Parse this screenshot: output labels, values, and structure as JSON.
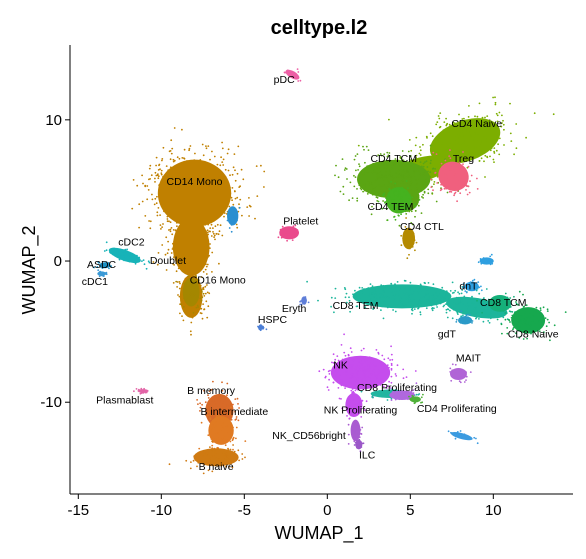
{
  "chart_data": {
    "type": "scatter",
    "title": "celltype.l2",
    "xlabel": "WUMAP_1",
    "ylabel": "WUMAP_2",
    "xlim": [
      -15.5,
      14.8
    ],
    "ylim": [
      -16.5,
      15.3
    ],
    "x_ticks": [
      -15,
      -10,
      -5,
      0,
      5,
      10
    ],
    "y_ticks": [
      -10,
      0,
      10
    ],
    "grid": false,
    "legend": "none",
    "clusters": [
      {
        "name": "CD4 Naive",
        "color": "#7cae00",
        "label_x": 9.0,
        "label_y": 9.5,
        "shapes": [
          {
            "cx": 8.3,
            "cy": 8.5,
            "rx": 2.6,
            "ry": 1.7,
            "rot": 20
          },
          {
            "cx": 5.7,
            "cy": 6.5,
            "rx": 2.0,
            "ry": 1.0,
            "rot": 15
          }
        ]
      },
      {
        "name": "CD4 TCM",
        "color": "#5aa513",
        "label_x": 4.0,
        "label_y": 7.0,
        "shapes": [
          {
            "cx": 4.0,
            "cy": 5.8,
            "rx": 2.6,
            "ry": 1.6,
            "rot": 0
          },
          {
            "cx": 4.7,
            "cy": 4.5,
            "rx": 1.0,
            "ry": 1.2,
            "rot": 0
          }
        ]
      },
      {
        "name": "Treg",
        "color": "#f0607e",
        "label_x": 8.2,
        "label_y": 7.0,
        "shapes": [
          {
            "cx": 7.6,
            "cy": 6.0,
            "rx": 1.1,
            "ry": 1.2,
            "rot": -30
          }
        ]
      },
      {
        "name": "CD4 TEM",
        "color": "#45b21f",
        "label_x": 3.8,
        "label_y": 3.6,
        "shapes": [
          {
            "cx": 4.3,
            "cy": 4.3,
            "rx": 0.9,
            "ry": 1.1,
            "rot": 0
          }
        ]
      },
      {
        "name": "CD4 CTL",
        "color": "#b48a00",
        "label_x": 5.7,
        "label_y": 2.2,
        "shapes": [
          {
            "cx": 4.9,
            "cy": 1.6,
            "rx": 0.45,
            "ry": 0.9,
            "rot": 0
          }
        ]
      },
      {
        "name": "pDC",
        "color": "#ec5fa5",
        "label_x": -2.6,
        "label_y": 12.6,
        "shapes": [
          {
            "cx": -2.1,
            "cy": 13.2,
            "rx": 0.55,
            "ry": 0.3,
            "rot": -30
          }
        ]
      },
      {
        "name": "CD14 Mono",
        "color": "#c08000",
        "label_x": -8.0,
        "label_y": 5.4,
        "shapes": [
          {
            "cx": -8.0,
            "cy": 4.8,
            "rx": 2.6,
            "ry": 2.8,
            "rot": 0
          },
          {
            "cx": -8.2,
            "cy": 1.0,
            "rx": 1.3,
            "ry": 2.4,
            "rot": 0
          },
          {
            "cx": -8.2,
            "cy": -2.5,
            "rx": 0.8,
            "ry": 1.8,
            "rot": 0
          }
        ]
      },
      {
        "name": "CD16 Mono",
        "color": "#a48700",
        "label_x": -6.6,
        "label_y": -1.6,
        "shapes": [
          {
            "cx": -8.2,
            "cy": -2.2,
            "rx": 0.6,
            "ry": 1.2,
            "rot": 0
          }
        ]
      },
      {
        "name": "Doublet",
        "color": "#2a8fd0",
        "label_x": -9.6,
        "label_y": -0.2,
        "shapes": [
          {
            "cx": -5.7,
            "cy": 3.2,
            "rx": 0.4,
            "ry": 0.8,
            "rot": 0
          }
        ]
      },
      {
        "name": "cDC2",
        "color": "#17b3b8",
        "label_x": -11.8,
        "label_y": 1.1,
        "shapes": [
          {
            "cx": -12.2,
            "cy": 0.4,
            "rx": 1.2,
            "ry": 0.45,
            "rot": -20
          }
        ]
      },
      {
        "name": "ASDC",
        "color": "#1c8fc2",
        "label_x": -13.6,
        "label_y": -0.5,
        "shapes": [
          {
            "cx": -13.4,
            "cy": -0.3,
            "rx": 0.4,
            "ry": 0.25,
            "rot": 0
          }
        ]
      },
      {
        "name": "cDC1",
        "color": "#3c9ad6",
        "label_x": -14.0,
        "label_y": -1.7,
        "shapes": [
          {
            "cx": -13.6,
            "cy": -0.9,
            "rx": 0.3,
            "ry": 0.2,
            "rot": 0
          }
        ]
      },
      {
        "name": "Platelet",
        "color": "#ea4a8c",
        "label_x": -1.6,
        "label_y": 2.6,
        "shapes": [
          {
            "cx": -2.3,
            "cy": 2.0,
            "rx": 0.7,
            "ry": 0.55,
            "rot": 0
          }
        ]
      },
      {
        "name": "Eryth",
        "color": "#5f7ed8",
        "label_x": -2.0,
        "label_y": -3.6,
        "shapes": [
          {
            "cx": -1.4,
            "cy": -2.8,
            "rx": 0.2,
            "ry": 0.35,
            "rot": 0
          }
        ]
      },
      {
        "name": "HSPC",
        "color": "#4c7fd6",
        "label_x": -3.3,
        "label_y": -4.4,
        "shapes": [
          {
            "cx": -4.0,
            "cy": -4.7,
            "rx": 0.2,
            "ry": 0.2,
            "rot": 0
          }
        ]
      },
      {
        "name": "CD8 TEM",
        "color": "#1cb59b",
        "label_x": 1.7,
        "label_y": -3.4,
        "shapes": [
          {
            "cx": 4.5,
            "cy": -2.5,
            "rx": 3.5,
            "ry": 1.0,
            "rot": 0
          },
          {
            "cx": 9.0,
            "cy": -3.3,
            "rx": 2.2,
            "ry": 0.8,
            "rot": -10
          }
        ]
      },
      {
        "name": "dnT",
        "color": "#2f9fe0",
        "label_x": 8.5,
        "label_y": -2.0,
        "shapes": [
          {
            "cx": 8.7,
            "cy": -1.8,
            "rx": 0.5,
            "ry": 0.4,
            "rot": 0
          },
          {
            "cx": 9.6,
            "cy": 0.0,
            "rx": 0.5,
            "ry": 0.3,
            "rot": 0
          }
        ]
      },
      {
        "name": "CD8 TCM",
        "color": "#16b07a",
        "label_x": 10.6,
        "label_y": -3.2,
        "shapes": [
          {
            "cx": 10.4,
            "cy": -3.0,
            "rx": 0.8,
            "ry": 0.7,
            "rot": 0
          }
        ]
      },
      {
        "name": "CD8 Naive",
        "color": "#16a84e",
        "label_x": 12.4,
        "label_y": -5.4,
        "shapes": [
          {
            "cx": 12.1,
            "cy": -4.2,
            "rx": 1.2,
            "ry": 1.1,
            "rot": 0
          }
        ]
      },
      {
        "name": "gdT",
        "color": "#2b9ac8",
        "label_x": 7.2,
        "label_y": -5.4,
        "shapes": [
          {
            "cx": 8.3,
            "cy": -4.2,
            "rx": 0.5,
            "ry": 0.35,
            "rot": 0
          }
        ]
      },
      {
        "name": "NK",
        "color": "#c54ded",
        "label_x": 0.8,
        "label_y": -7.6,
        "shapes": [
          {
            "cx": 2.0,
            "cy": -7.9,
            "rx": 2.1,
            "ry": 1.4,
            "rot": 0
          },
          {
            "cx": 1.6,
            "cy": -10.2,
            "rx": 0.6,
            "ry": 1.0,
            "rot": 0
          }
        ]
      },
      {
        "name": "CD8 Proliferating",
        "color": "#22b5a0",
        "label_x": 4.2,
        "label_y": -9.2,
        "shapes": [
          {
            "cx": 3.8,
            "cy": -9.4,
            "rx": 1.4,
            "ry": 0.35,
            "rot": 0
          }
        ]
      },
      {
        "name": "NK Proliferating",
        "color": "#b068de",
        "label_x": 2.0,
        "label_y": -10.8,
        "shapes": [
          {
            "cx": 4.5,
            "cy": -9.5,
            "rx": 0.9,
            "ry": 0.4,
            "rot": 0
          }
        ]
      },
      {
        "name": "CD4 Proliferating",
        "color": "#4fb038",
        "label_x": 7.8,
        "label_y": -10.7,
        "shapes": [
          {
            "cx": 5.3,
            "cy": -9.8,
            "rx": 0.4,
            "ry": 0.25,
            "rot": 0
          }
        ]
      },
      {
        "name": "MAIT",
        "color": "#b065d6",
        "label_x": 8.5,
        "label_y": -7.1,
        "shapes": [
          {
            "cx": 7.9,
            "cy": -8.0,
            "rx": 0.6,
            "ry": 0.5,
            "rot": 0
          }
        ]
      },
      {
        "name": "NK_CD56bright",
        "color": "#a95bd1",
        "label_x": -1.1,
        "label_y": -12.6,
        "shapes": [
          {
            "cx": 1.7,
            "cy": -12.0,
            "rx": 0.35,
            "ry": 0.9,
            "rot": 0
          }
        ]
      },
      {
        "name": "ILC",
        "color": "#9b58c8",
        "label_x": 2.4,
        "label_y": -14.0,
        "shapes": [
          {
            "cx": 1.9,
            "cy": -13.0,
            "rx": 0.25,
            "ry": 0.4,
            "rot": 0
          }
        ]
      },
      {
        "name": "B memory",
        "color": "#d86a28",
        "label_x": -7.0,
        "label_y": -9.4,
        "shapes": [
          {
            "cx": -6.5,
            "cy": -10.6,
            "rx": 1.0,
            "ry": 1.4,
            "rot": 0
          }
        ]
      },
      {
        "name": "B intermediate",
        "color": "#e07a22",
        "label_x": -5.6,
        "label_y": -10.9,
        "shapes": [
          {
            "cx": -6.4,
            "cy": -12.0,
            "rx": 0.9,
            "ry": 1.2,
            "rot": 0
          }
        ]
      },
      {
        "name": "B naive",
        "color": "#cf7a12",
        "label_x": -6.7,
        "label_y": -14.8,
        "shapes": [
          {
            "cx": -6.7,
            "cy": -13.9,
            "rx": 1.6,
            "ry": 0.75,
            "rot": 0
          }
        ]
      },
      {
        "name": "Plasmablast",
        "color": "#e265a7",
        "label_x": -12.2,
        "label_y": -10.1,
        "shapes": [
          {
            "cx": -11.1,
            "cy": -9.2,
            "rx": 0.4,
            "ry": 0.15,
            "rot": 0
          }
        ]
      },
      {
        "name": "",
        "color": "#3b9be0",
        "label_x": null,
        "label_y": null,
        "shapes": [
          {
            "cx": 8.1,
            "cy": -12.4,
            "rx": 0.8,
            "ry": 0.25,
            "rot": -15
          }
        ]
      }
    ]
  }
}
